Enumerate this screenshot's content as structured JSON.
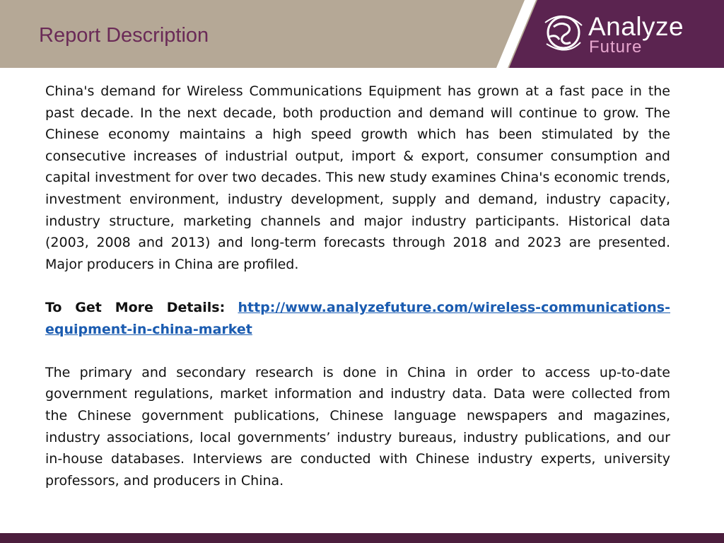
{
  "header": {
    "title": "Report Description",
    "logo": {
      "name": "Analyze",
      "subtitle": "Future",
      "icon": "globe-swirl-icon"
    }
  },
  "content": {
    "paragraph1": "China's demand for Wireless Communications Equipment has grown at a fast pace in the past decade. In the next decade, both production and demand will continue to grow. The Chinese economy maintains a high speed growth which has been stimulated by the consecutive increases of industrial output, import & export, consumer consumption and capital investment for over two decades. This new study examines China's economic trends, investment environment, industry development, supply and demand, industry capacity, industry structure, marketing channels and major industry participants. Historical data (2003, 2008 and 2013) and long-term forecasts through 2018 and 2023 are presented. Major producers in China are profiled.",
    "details_label": "To Get More Details:",
    "details_link": "http://www.analyzefuture.com/wireless-communications-equipment-in-china-market",
    "paragraph2": "The primary and secondary research is done in China in order to access up-to-date government regulations, market information and industry data. Data were collected from the Chinese government publications, Chinese language newspapers and magazines, industry associations, local governments’ industry bureaus, industry publications, and our in-house databases. Interviews are conducted with Chinese industry experts, university professors, and producers in China."
  },
  "colors": {
    "header_bg": "#b5a896",
    "title": "#6a2a57",
    "logo_panel": "#5b2450",
    "link": "#1a5bb0",
    "footer": "#4c1e3d"
  }
}
